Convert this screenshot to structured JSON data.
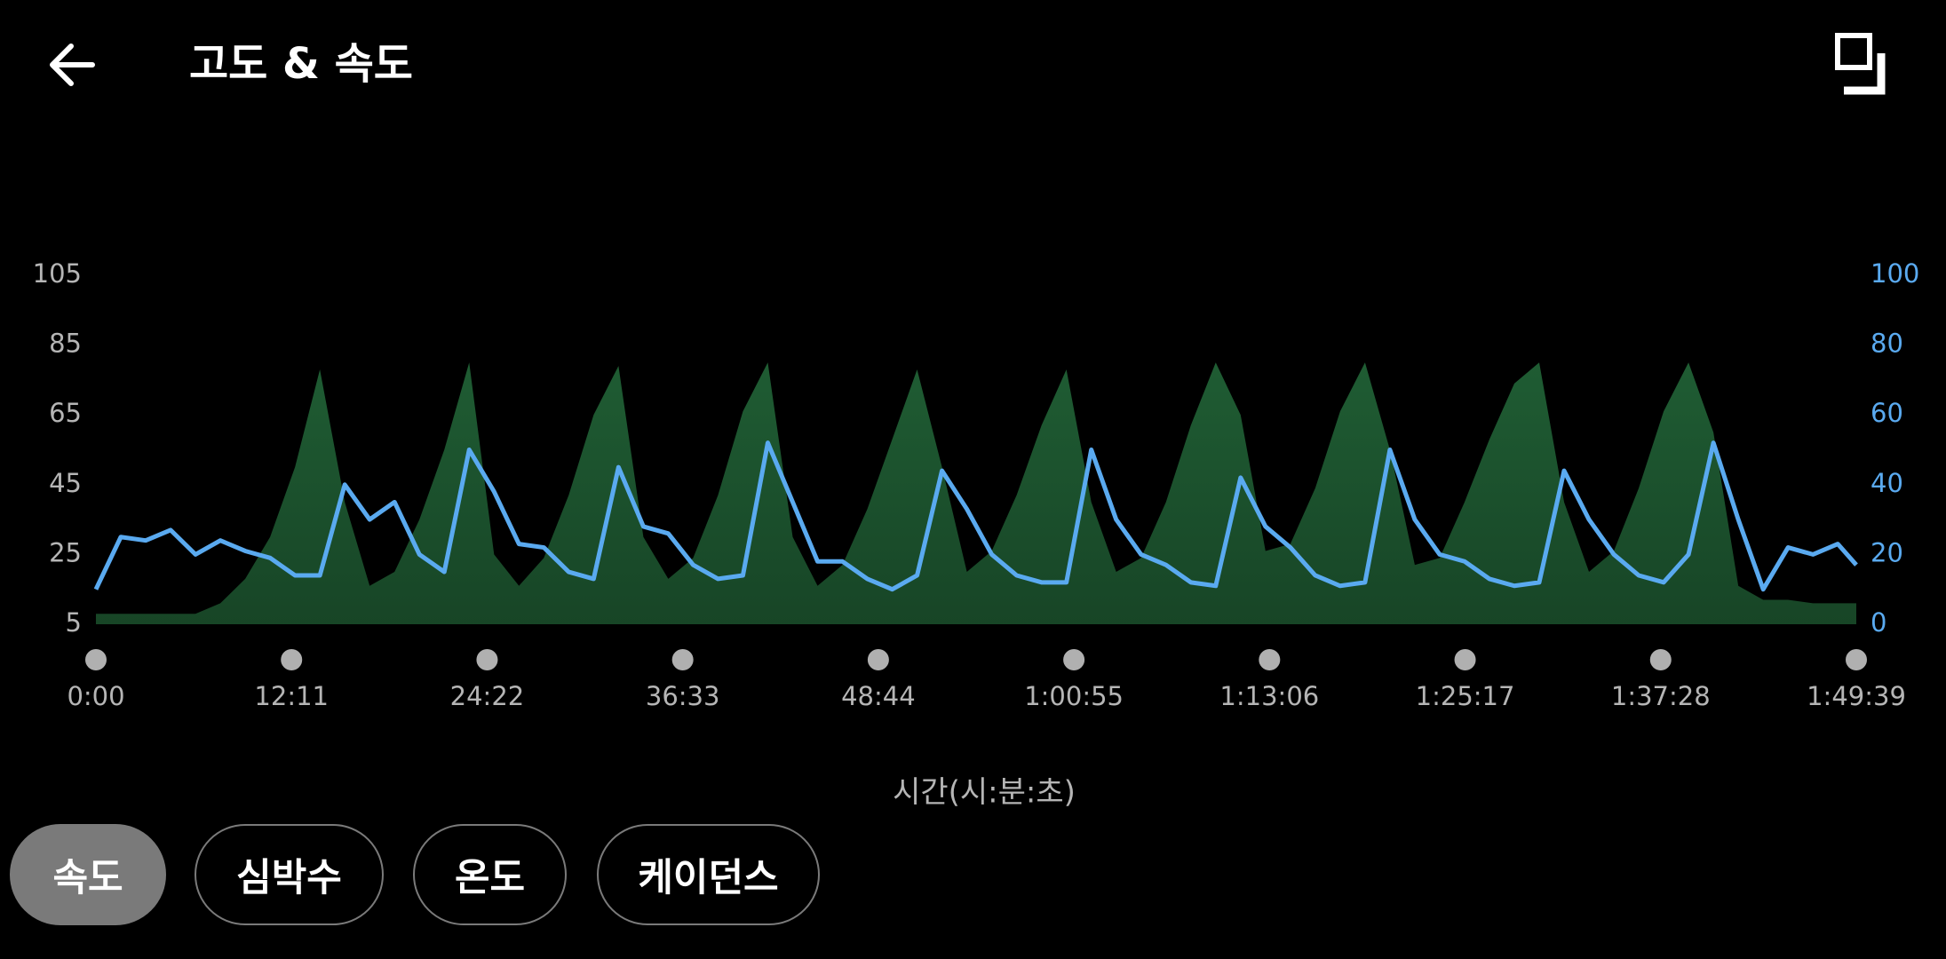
{
  "header": {
    "title": "고도 & 속도"
  },
  "chart_data": {
    "type": "line",
    "x_label": "시간(시:분:초)",
    "x": [
      0,
      93,
      186,
      279,
      372,
      465,
      558,
      651,
      744,
      837,
      930,
      1023,
      1116,
      1209,
      1302,
      1395,
      1488,
      1581,
      1674,
      1767,
      1860,
      1953,
      2046,
      2139,
      2232,
      2325,
      2418,
      2511,
      2604,
      2697,
      2790,
      2883,
      2976,
      3069,
      3162,
      3255,
      3348,
      3441,
      3534,
      3627,
      3720,
      3813,
      3906,
      3999,
      4092,
      4185,
      4278,
      4371,
      4464,
      4557,
      4650,
      4743,
      4836,
      4929,
      5022,
      5115,
      5208,
      5301,
      5394,
      5487,
      5580,
      5673,
      5766,
      5859,
      5952,
      6045,
      6138,
      6231,
      6324,
      6417,
      6510,
      6579
    ],
    "xlim": [
      0,
      6579
    ],
    "xticks": [
      {
        "value": 0,
        "label": "0:00"
      },
      {
        "value": 731,
        "label": "12:11"
      },
      {
        "value": 1462,
        "label": "24:22"
      },
      {
        "value": 2193,
        "label": "36:33"
      },
      {
        "value": 2924,
        "label": "48:44"
      },
      {
        "value": 3655,
        "label": "1:00:55"
      },
      {
        "value": 4386,
        "label": "1:13:06"
      },
      {
        "value": 5117,
        "label": "1:25:17"
      },
      {
        "value": 5848,
        "label": "1:37:28"
      },
      {
        "value": 6579,
        "label": "1:49:39"
      }
    ],
    "ylim": [
      5,
      105
    ],
    "yticks": [
      5,
      25,
      45,
      65,
      85,
      105
    ],
    "y2lim": [
      0,
      100
    ],
    "y2ticks": [
      0,
      20,
      40,
      60,
      80,
      100
    ],
    "y2_color": "#5aaaf0",
    "series": [
      {
        "type": "area",
        "color": "#1f5c33",
        "values": [
          8,
          8,
          8,
          8,
          8,
          11,
          18,
          30,
          50,
          78,
          40,
          16,
          20,
          35,
          55,
          80,
          25,
          16,
          24,
          42,
          65,
          79,
          30,
          18,
          24,
          42,
          66,
          80,
          30,
          16,
          22,
          38,
          58,
          78,
          50,
          20,
          26,
          42,
          62,
          78,
          40,
          20,
          24,
          40,
          62,
          80,
          65,
          26,
          28,
          44,
          66,
          80,
          55,
          22,
          24,
          40,
          58,
          74,
          80,
          40,
          20,
          26,
          44,
          66,
          80,
          60,
          16,
          12,
          12,
          11,
          11,
          11
        ]
      },
      {
        "type": "line",
        "axis": "y2",
        "color": "#5aaaf0",
        "values": [
          10,
          25,
          24,
          27,
          20,
          24,
          21,
          19,
          14,
          14,
          40,
          30,
          35,
          20,
          15,
          50,
          38,
          23,
          22,
          15,
          13,
          45,
          28,
          26,
          17,
          13,
          14,
          52,
          35,
          18,
          18,
          13,
          10,
          14,
          44,
          33,
          20,
          14,
          12,
          12,
          50,
          30,
          20,
          17,
          12,
          11,
          42,
          28,
          22,
          14,
          11,
          12,
          50,
          30,
          20,
          18,
          13,
          11,
          12,
          44,
          30,
          20,
          14,
          12,
          20,
          52,
          30,
          10,
          22,
          20,
          23,
          17
        ]
      }
    ]
  },
  "tabs": [
    {
      "label": "속도",
      "selected": true
    },
    {
      "label": "심박수",
      "selected": false
    },
    {
      "label": "온도",
      "selected": false
    },
    {
      "label": "케이던스",
      "selected": false
    }
  ]
}
